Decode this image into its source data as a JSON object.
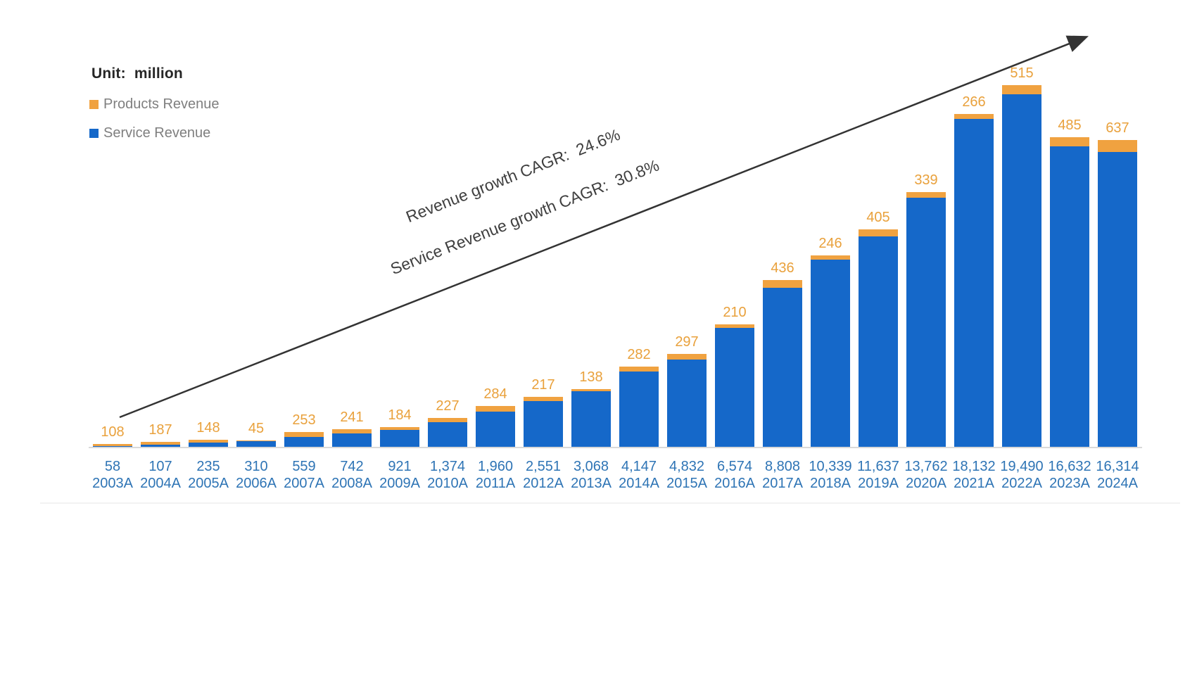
{
  "header": {
    "unit_label": "Unit:  million"
  },
  "legend": {
    "items": [
      {
        "label": "Products Revenue",
        "color": "#F0A240"
      },
      {
        "label": "Service Revenue",
        "color": "#1568C9"
      }
    ]
  },
  "annotations": {
    "line1": "Revenue growth CAGR:  24.6%",
    "line2": "Service Revenue growth CAGR:  30.8%"
  },
  "chart_data": {
    "type": "bar",
    "stacked": true,
    "title": "",
    "unit": "million",
    "grid": false,
    "legend_position": "top-left",
    "categories": [
      "2003A",
      "2004A",
      "2005A",
      "2006A",
      "2007A",
      "2008A",
      "2009A",
      "2010A",
      "2011A",
      "2012A",
      "2013A",
      "2014A",
      "2015A",
      "2016A",
      "2017A",
      "2018A",
      "2019A",
      "2020A",
      "2021A",
      "2022A",
      "2023A",
      "2024A"
    ],
    "series": [
      {
        "name": "Service Revenue",
        "color": "#1568C9",
        "values": [
          58,
          107,
          235,
          310,
          559,
          742,
          921,
          1374,
          1960,
          2551,
          3068,
          4147,
          4832,
          6574,
          8808,
          10339,
          11637,
          13762,
          18132,
          19490,
          16632,
          16314
        ]
      },
      {
        "name": "Products Revenue",
        "color": "#F0A240",
        "values": [
          108,
          187,
          148,
          45,
          253,
          241,
          184,
          227,
          284,
          217,
          138,
          282,
          297,
          210,
          436,
          246,
          405,
          339,
          266,
          515,
          485,
          637
        ]
      }
    ],
    "annotations": [
      "Revenue growth CAGR:  24.6%",
      "Service Revenue growth CAGR:  30.8%"
    ],
    "colors": {
      "service_bar": "#1568C9",
      "products_bar": "#F0A240",
      "products_label_text": "#E9A13C",
      "axis_label_text": "#2E74B5",
      "legend_text": "#7F7F7F",
      "annotation_text": "#3F3F3F",
      "arrow": "#333333",
      "baseline": "#D9D9D9"
    }
  }
}
